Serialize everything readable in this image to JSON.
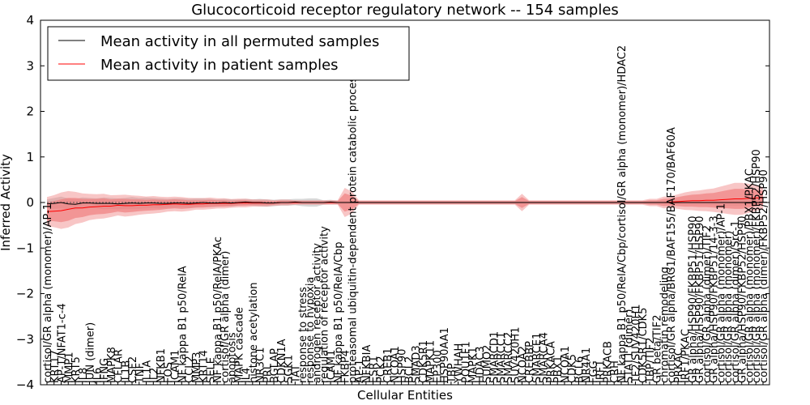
{
  "chart_data": {
    "type": "line",
    "title": "Glucocorticoid receptor regulatory network -- 154 samples",
    "xlabel": "Cellular Entities",
    "ylabel": "Inferred Activity",
    "ylim": [
      -4,
      4
    ],
    "yticks": [
      -4,
      -3,
      -2,
      -1,
      0,
      1,
      2,
      3,
      4
    ],
    "ytick_labels": [
      "−4",
      "−3",
      "−2",
      "−1",
      "0",
      "1",
      "2",
      "3",
      "4"
    ],
    "grid": false,
    "legend_position": "top-left",
    "colors": {
      "permuted": "#000000",
      "patient": "#ff0000",
      "patient_band": "#f08080",
      "permuted_band": "#c8c8c8",
      "baseline": "#555555"
    },
    "categories": [
      "cortisol/GR alpha (monomer)/AP-1",
      "KRT17",
      "AP-1/NFAT1-c-4",
      "MMP1",
      "KRT5",
      "IL8",
      "JUN (dimer)",
      "IL6",
      "IFNG",
      "MAPK8",
      "CFLAR",
      "IL1B",
      "CSF2",
      "TNF",
      "IL1A",
      "IL2",
      "NFKB1",
      "FOS",
      "ICAM1",
      "NF kappa B1 p50/RelA",
      "CCL2",
      "MMP3",
      "KRT14",
      "SELE",
      "NF kappa B1 p50/RelA/PKAc",
      "cortisol/GR alpha (dimer)",
      "apoptosis",
      "MAPK cascade",
      "IL4",
      "histone acetylation",
      "NR3C1",
      "PRL",
      "BGLAP",
      "CDKN1A",
      "SGK1",
      "TAT",
      "response to stress",
      "response to hypoxia",
      "androgen receptor activity",
      "regulation of receptor activity",
      "ICAM1",
      "NF kappa B1 p50/RelA/Cbp",
      "FKBP4",
      "proteasomal ubiquitin-dependent protein catabolic process",
      "AP-1",
      "NFKBIA",
      "ESR1",
      "PCK2",
      "CREB1",
      "NCOA1",
      "HSP90",
      "BCL2",
      "SMAD3",
      "CDK5R1",
      "MAPK11",
      "EP300",
      "HSP90AA1",
      "TBP",
      "YWHAH",
      "POU1F1",
      "MAPK1",
      "HDAC3",
      "SUMO2",
      "SMARCD1",
      "SMARCC1",
      "SMARCC2",
      "SUV420H1",
      "NCOA2",
      "CREBBP",
      "SMARCE1",
      "SMARCA4",
      "PRKACA",
      "PBX1",
      "NCOA1",
      "CDK5",
      "BCL6",
      "NR4A1",
      "FGG",
      "IRF1",
      "PRKACB",
      "CRH",
      "NF kappa B1 p50/RelA/Cbp/cortisol/GR alpha (monomer)/HDAC2",
      "STAT1 (dimer)",
      "TF2/SUV420H1",
      "CDK5R1/CDK5",
      "TBP/TIF2",
      "GR beta/TIF2",
      "chromatin remodeling",
      "cortisol/GR alpha/BRG1/BAF155/BAF170/BAF60A",
      "PRKAC",
      "IRF1/PKAC",
      "GR alpha/HSP90/FKBP51/HSP90",
      "GR alpha/HSP90/FKBP51/HSP90",
      "cortisol/GR alpha (dimer)/TIF2",
      "GR alpha/HSP90/FKBP51/14-3-3",
      "cortisol/GR alpha (monomer)/AP-1",
      "cortisol/GR alpha (monomer)",
      "cortisol/GR alpha (dimer)/Src-1",
      "GR alpha/HSP90/FKBP52/HSP90",
      "cortisol/GR alpha (monomer)/PBX1/PKAC",
      "cortisol/GR alpha (monomer)/FKBP52/HSP90",
      "cortisol/GR alpha (dimer)/FKBP52/HSP90"
    ],
    "series": [
      {
        "name": "Mean activity in all permuted samples",
        "color": "#000000",
        "values": [
          -0.03,
          -0.02,
          0.0,
          -0.03,
          -0.04,
          -0.01,
          -0.01,
          -0.02,
          -0.02,
          -0.02,
          -0.03,
          -0.02,
          -0.01,
          -0.02,
          -0.01,
          -0.01,
          -0.02,
          -0.02,
          -0.01,
          -0.01,
          -0.02,
          -0.01,
          0.0,
          -0.01,
          -0.01,
          0.0,
          -0.01,
          0.0,
          0.01,
          0.0,
          0.0,
          -0.01,
          -0.01,
          0.0,
          0.0,
          0.01,
          0.0,
          0.0,
          0.0,
          0.0,
          0.01,
          0.0,
          0.0,
          0.0,
          0.0,
          0.0,
          0.0,
          0.0,
          0.0,
          0.0,
          0.0,
          0.0,
          0.0,
          0.0,
          0.0,
          0.0,
          0.0,
          0.0,
          0.0,
          0.0,
          0.0,
          0.0,
          0.0,
          0.0,
          0.0,
          0.0,
          0.0,
          0.0,
          0.0,
          0.0,
          0.0,
          0.0,
          0.0,
          0.0,
          0.0,
          0.0,
          0.0,
          0.0,
          0.0,
          0.0,
          0.0,
          0.0,
          0.0,
          0.0,
          0.0,
          0.0,
          0.0,
          0.0,
          0.0,
          0.0,
          0.0,
          0.0,
          0.0,
          0.0,
          0.0,
          0.0,
          0.0,
          0.0,
          0.0,
          0.0,
          0.0,
          0.0
        ]
      },
      {
        "name": "Mean activity in patient samples",
        "color": "#ff0000",
        "values": [
          -0.2,
          -0.19,
          -0.18,
          -0.15,
          -0.12,
          -0.12,
          -0.1,
          -0.09,
          -0.08,
          -0.08,
          -0.06,
          -0.07,
          -0.07,
          -0.06,
          -0.06,
          -0.05,
          -0.05,
          -0.04,
          -0.03,
          -0.04,
          -0.04,
          -0.03,
          -0.03,
          -0.02,
          -0.02,
          -0.02,
          -0.02,
          -0.01,
          -0.01,
          -0.01,
          -0.01,
          -0.01,
          -0.01,
          0.0,
          0.0,
          0.0,
          0.0,
          0.0,
          0.0,
          0.0,
          0.0,
          0.0,
          0.0,
          0.0,
          0.0,
          0.0,
          0.0,
          0.0,
          0.0,
          0.0,
          0.0,
          0.0,
          0.0,
          0.0,
          0.0,
          0.0,
          0.0,
          0.0,
          0.0,
          0.0,
          0.0,
          0.0,
          0.0,
          0.0,
          0.0,
          0.0,
          0.0,
          0.0,
          0.0,
          0.0,
          0.0,
          0.0,
          0.0,
          0.0,
          0.0,
          0.0,
          0.0,
          0.0,
          0.0,
          0.0,
          0.0,
          0.0,
          0.0,
          0.0,
          0.0,
          0.0,
          0.0,
          0.0,
          0.01,
          0.02,
          0.03,
          0.04,
          0.04,
          0.05,
          0.05,
          0.06,
          0.07,
          0.08,
          0.08,
          0.09,
          0.1,
          0.1
        ]
      }
    ],
    "patient_band_halfwidth": [
      0.2,
      0.22,
      0.25,
      0.25,
      0.22,
      0.2,
      0.18,
      0.17,
      0.17,
      0.15,
      0.14,
      0.15,
      0.14,
      0.13,
      0.12,
      0.12,
      0.11,
      0.1,
      0.1,
      0.1,
      0.09,
      0.08,
      0.08,
      0.08,
      0.07,
      0.07,
      0.06,
      0.06,
      0.06,
      0.05,
      0.05,
      0.05,
      0.04,
      0.04,
      0.04,
      0.03,
      0.03,
      0.03,
      0.03,
      0.03,
      0.03,
      0.03,
      0.2,
      0.15,
      0.03,
      0.03,
      0.03,
      0.03,
      0.03,
      0.03,
      0.03,
      0.03,
      0.03,
      0.03,
      0.03,
      0.03,
      0.03,
      0.03,
      0.03,
      0.03,
      0.03,
      0.03,
      0.03,
      0.03,
      0.03,
      0.03,
      0.03,
      0.12,
      0.03,
      0.03,
      0.03,
      0.03,
      0.03,
      0.03,
      0.03,
      0.03,
      0.03,
      0.03,
      0.03,
      0.03,
      0.03,
      0.03,
      0.03,
      0.03,
      0.03,
      0.05,
      0.05,
      0.08,
      0.08,
      0.1,
      0.12,
      0.13,
      0.14,
      0.15,
      0.16,
      0.18,
      0.2,
      0.22,
      0.22,
      0.2,
      0.18,
      0.15
    ],
    "permuted_band_halfwidth": [
      0.1,
      0.12,
      0.13,
      0.12,
      0.12,
      0.12,
      0.11,
      0.11,
      0.13,
      0.12,
      0.12,
      0.12,
      0.13,
      0.12,
      0.12,
      0.11,
      0.11,
      0.1,
      0.1,
      0.1,
      0.1,
      0.1,
      0.09,
      0.09,
      0.08,
      0.08,
      0.08,
      0.07,
      0.07,
      0.07,
      0.08,
      0.08,
      0.07,
      0.07,
      0.07,
      0.07,
      0.08,
      0.09,
      0.09,
      0.05,
      0.05,
      0.04,
      0.04,
      0.03,
      0.03,
      0.03,
      0.03,
      0.03,
      0.03,
      0.03,
      0.03,
      0.03,
      0.03,
      0.03,
      0.03,
      0.03,
      0.03,
      0.03,
      0.03,
      0.03,
      0.03,
      0.03,
      0.03,
      0.03,
      0.03,
      0.03,
      0.03,
      0.03,
      0.03,
      0.03,
      0.03,
      0.03,
      0.03,
      0.03,
      0.03,
      0.03,
      0.03,
      0.03,
      0.03,
      0.03,
      0.03,
      0.03,
      0.03,
      0.03,
      0.03,
      0.03,
      0.03,
      0.03,
      0.03,
      0.04,
      0.04,
      0.05,
      0.05,
      0.05,
      0.06,
      0.06,
      0.07,
      0.07,
      0.07,
      0.06,
      0.06,
      0.05
    ]
  }
}
